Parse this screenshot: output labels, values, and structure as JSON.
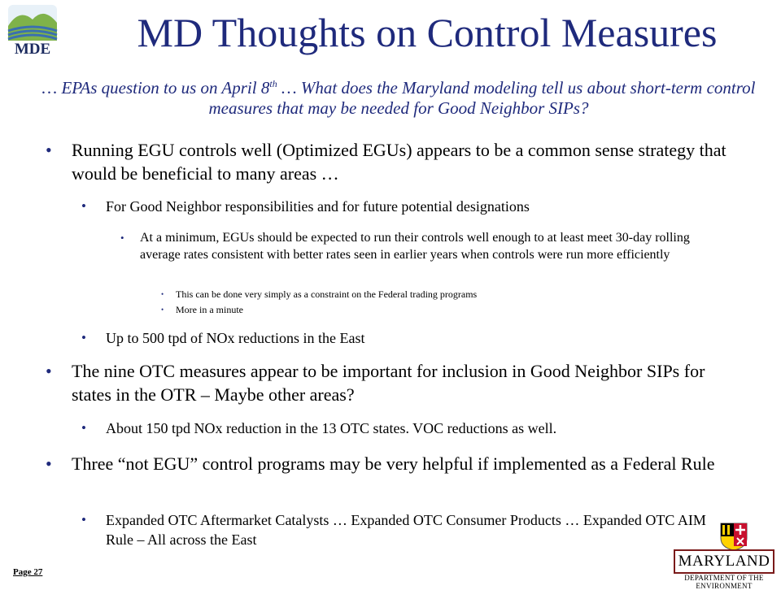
{
  "header": {
    "logo_text": "MDE",
    "title": "MD Thoughts on Control Measures",
    "subtitle_pre": "… EPAs question to us on April 8",
    "subtitle_sup": "th",
    "subtitle_post": " … What does the Maryland modeling tell us about short-term  control measures that may be needed for Good Neighbor SIPs?"
  },
  "bullets": {
    "b1": "Running EGU controls well (Optimized EGUs) appears to be a common sense strategy that would be beneficial to many areas …",
    "b1_1": "For Good Neighbor responsibilities and for future potential designations",
    "b1_1_1": "At a minimum, EGUs should be expected to run their controls well enough to at least meet 30-day rolling average rates consistent with better rates seen in earlier years when controls were run more efficiently",
    "b1_1_1_1": "This can be done very simply as a constraint on the Federal trading programs",
    "b1_1_1_2": "More in a minute",
    "b1_2": "Up to 500 tpd of NOx reductions in the East",
    "b2": "The nine OTC measures appear to be important for inclusion in Good Neighbor SIPs for states in the OTR – Maybe other areas?",
    "b2_1": "About 150 tpd NOx reduction in the 13 OTC states.  VOC reductions as well.",
    "b3": "Three “not EGU” control programs may be very helpful if implemented as a Federal Rule",
    "b3_1": "Expanded OTC Aftermarket Catalysts … Expanded OTC Consumer Products … Expanded OTC AIM Rule – All across the East"
  },
  "bullet_glyph": "•",
  "footer": {
    "page": "Page 27",
    "md_logo_text": "MARYLAND",
    "md_dept_text": "DEPARTMENT OF THE ENVIRONMENT"
  },
  "colors": {
    "title": "#1f2a7c",
    "bullet": "#1f2a7c",
    "logo_green": "#7fb24a",
    "logo_blue": "#3a6fb0"
  }
}
